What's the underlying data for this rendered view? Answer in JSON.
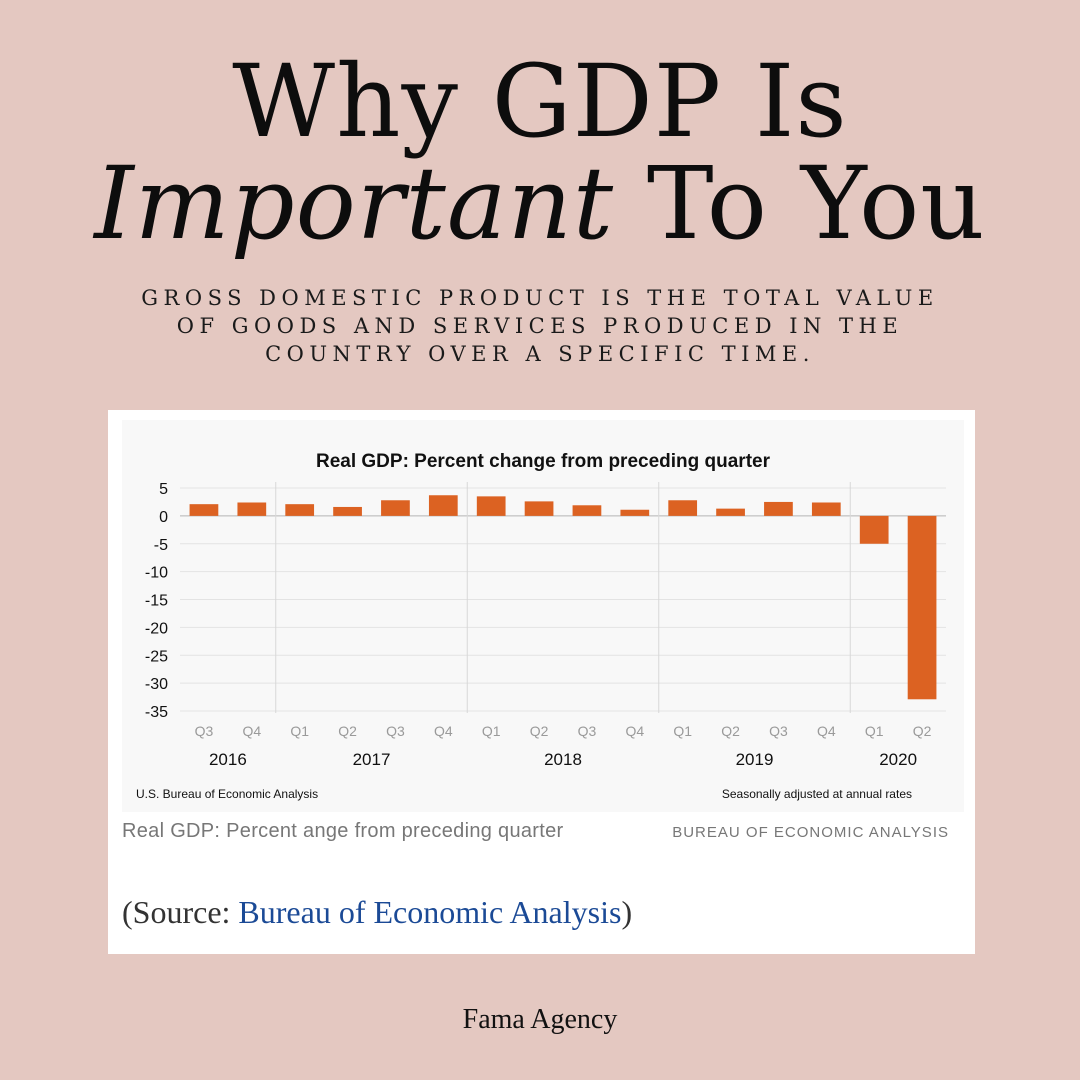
{
  "headline": {
    "line1": "Why GDP Is",
    "line2_part1": "Important",
    "line2_part2": " To You"
  },
  "subtitle": "GROSS DOMESTIC PRODUCT IS THE TOTAL VALUE OF GOODS AND SERVICES PRODUCED IN THE COUNTRY OVER A SPECIFIC TIME.",
  "caption": {
    "text": "Real GDP: Percent ange from preceding quarter",
    "source": "BUREAU OF ECONOMIC ANALYSIS"
  },
  "source": {
    "prefix": "(Source: ",
    "link": "Bureau of Economic Analysis",
    "suffix": ")"
  },
  "footer": "Fama Agency",
  "colors": {
    "background": "#e4c8c1",
    "bar": "#dc6222",
    "link": "#1b4a96"
  },
  "chart_data": {
    "type": "bar",
    "title": "Real GDP:  Percent change from preceding quarter",
    "xlabel": "",
    "ylabel": "",
    "ylim": [
      -35,
      5
    ],
    "yticks": [
      5,
      0,
      -5,
      -10,
      -15,
      -20,
      -25,
      -30,
      -35
    ],
    "categories": [
      "Q3",
      "Q4",
      "Q1",
      "Q2",
      "Q3",
      "Q4",
      "Q1",
      "Q2",
      "Q3",
      "Q4",
      "Q1",
      "Q2",
      "Q3",
      "Q4",
      "Q1",
      "Q2"
    ],
    "years": [
      {
        "label": "2016",
        "start": 0,
        "end": 1
      },
      {
        "label": "2017",
        "start": 2,
        "end": 5
      },
      {
        "label": "2018",
        "start": 6,
        "end": 9
      },
      {
        "label": "2019",
        "start": 10,
        "end": 13
      },
      {
        "label": "2020",
        "start": 14,
        "end": 15
      }
    ],
    "values": [
      2.1,
      2.4,
      2.1,
      1.6,
      2.8,
      3.7,
      3.5,
      2.6,
      1.9,
      1.1,
      2.8,
      1.3,
      2.5,
      2.4,
      -5.0,
      -32.9
    ],
    "grid": true,
    "note_left": "U.S. Bureau of Economic Analysis",
    "note_right": "Seasonally adjusted at annual rates"
  }
}
